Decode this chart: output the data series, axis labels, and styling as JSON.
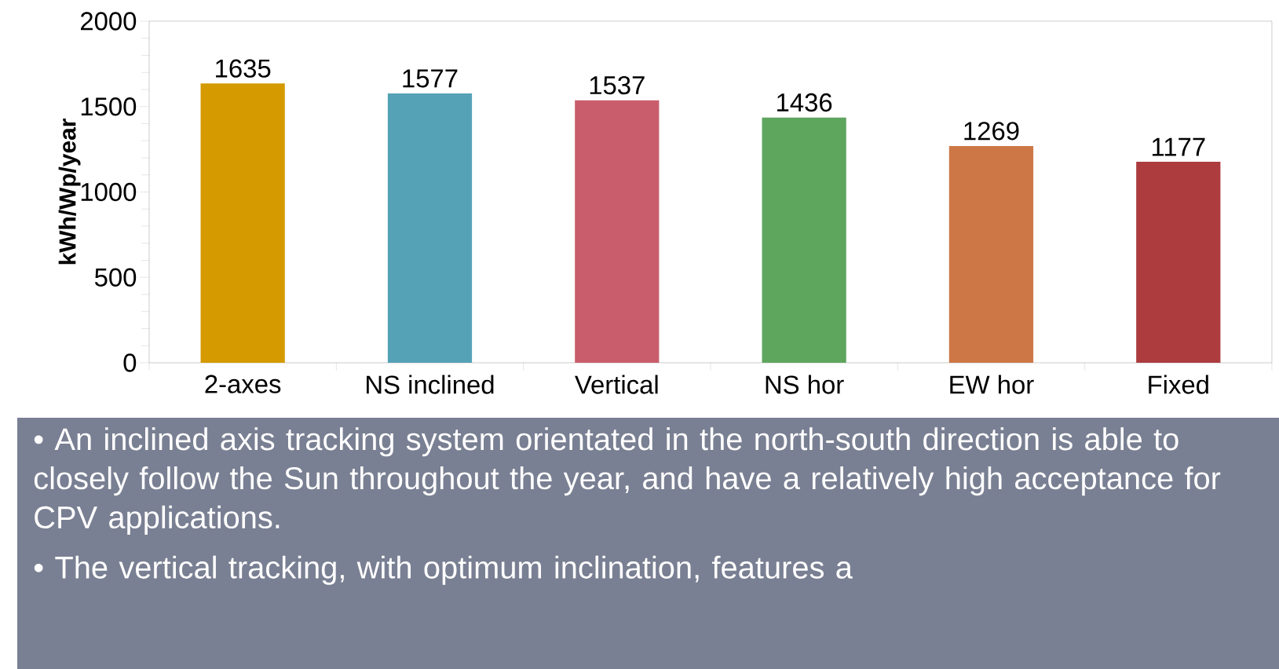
{
  "chart_data": {
    "type": "bar",
    "ylabel": "kWh/Wp/year",
    "categories": [
      "2-axes",
      "NS inclined",
      "Vertical",
      "NS hor",
      "EW hor",
      "Fixed"
    ],
    "values": [
      1635,
      1577,
      1537,
      1436,
      1269,
      1177
    ],
    "colors": [
      "#d49a00",
      "#55a2b6",
      "#c95d6c",
      "#5ea55e",
      "#cd7747",
      "#ac3c3e"
    ],
    "ylim": [
      0,
      2000
    ],
    "yticks": [
      0,
      500,
      1000,
      1500,
      2000
    ],
    "grid": false,
    "data_labels": true,
    "annotations": [
      "• An inclined axis tracking system orientated in the north-south direction is able to closely follow the Sun throughout the year, and have a relatively high acceptance for CPV applications.",
      "• The vertical tracking, with optimum inclination, features a"
    ]
  }
}
